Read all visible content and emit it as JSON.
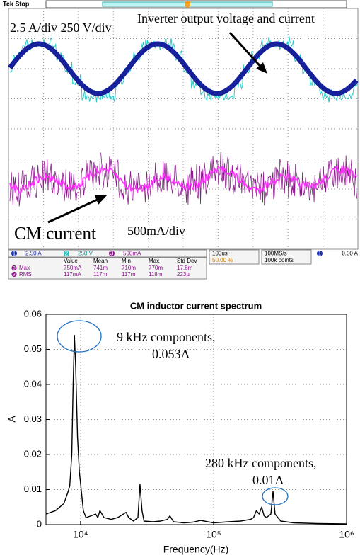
{
  "scope": {
    "status": "Tek Stop",
    "scale_note": "2.5 A/div  250 V/div",
    "voltage_note": "Inverter output voltage and current",
    "cm_note": "CM current",
    "cm_scale": "500mA/div",
    "channels": [
      {
        "id": "1",
        "scale": "2.50 A"
      },
      {
        "id": "2",
        "scale": "250 V"
      },
      {
        "id": "3",
        "scale": "500mA"
      }
    ],
    "timebase": "100us",
    "trigger_pos": "50.00 %",
    "sample_rate": "100MS/s",
    "record": "100k points",
    "trigger": {
      "channel": "1",
      "level": "0.00 A"
    },
    "measurements": {
      "headers": [
        "Value",
        "Mean",
        "Min",
        "Max",
        "Std Dev"
      ],
      "rows": [
        {
          "channel": "3",
          "label": "Max",
          "cells": [
            "750mA",
            "741m",
            "710m",
            "770m",
            "17.8m"
          ]
        },
        {
          "channel": "3",
          "label": "RMS",
          "cells": [
            "117mA",
            "117m",
            "117m",
            "118m",
            "223µ"
          ]
        }
      ]
    }
  },
  "chart_data": {
    "type": "line",
    "title": "CM inductor current spectrum",
    "x_label": "Frequency(Hz)",
    "y_label": "A",
    "xscale": "log",
    "grid": true,
    "color": "#000000",
    "x": [
      5500,
      6500,
      7500,
      8000,
      8300,
      8600,
      8800,
      9000,
      9200,
      9500,
      9800,
      10000,
      10500,
      11000,
      12000,
      13000,
      13500,
      14000,
      15000,
      17000,
      19000,
      21000,
      22000,
      23000,
      25000,
      27000,
      28000,
      29000,
      30000,
      35000,
      40000,
      45000,
      47000,
      50000,
      60000,
      70000,
      80000,
      100000,
      130000,
      160000,
      190000,
      200000,
      210000,
      220000,
      230000,
      240000,
      250000,
      270000,
      280000,
      290000,
      320000,
      400000,
      600000,
      1000000
    ],
    "values": [
      0.003,
      0.004,
      0.006,
      0.009,
      0.011,
      0.02,
      0.04,
      0.054,
      0.045,
      0.025,
      0.015,
      0.012,
      0.004,
      0.002,
      0.0025,
      0.003,
      0.002,
      0.004,
      0.002,
      0.0015,
      0.002,
      0.003,
      0.0035,
      0.002,
      0.001,
      0.002,
      0.0115,
      0.004,
      0.001,
      0.0008,
      0.001,
      0.0015,
      0.0025,
      0.0008,
      0.0005,
      0.0007,
      0.0012,
      0.0005,
      0.0008,
      0.001,
      0.0015,
      0.002,
      0.004,
      0.003,
      0.005,
      0.0025,
      0.002,
      0.003,
      0.0095,
      0.003,
      0.001,
      0.0005,
      0.0003,
      0.0002
    ],
    "xlim": [
      5500,
      1000000
    ],
    "xticks": [
      {
        "value": 10000,
        "label": "10⁴"
      },
      {
        "value": 100000,
        "label": "10⁵"
      },
      {
        "value": 1000000,
        "label": "10⁶"
      }
    ],
    "ylim": [
      0,
      0.06
    ],
    "yticks": [
      0,
      0.01,
      0.02,
      0.03,
      0.04,
      0.05,
      0.06
    ],
    "annotations": [
      "9 kHz components,",
      "0.053A",
      "280 kHz components,",
      "0.01A"
    ]
  }
}
